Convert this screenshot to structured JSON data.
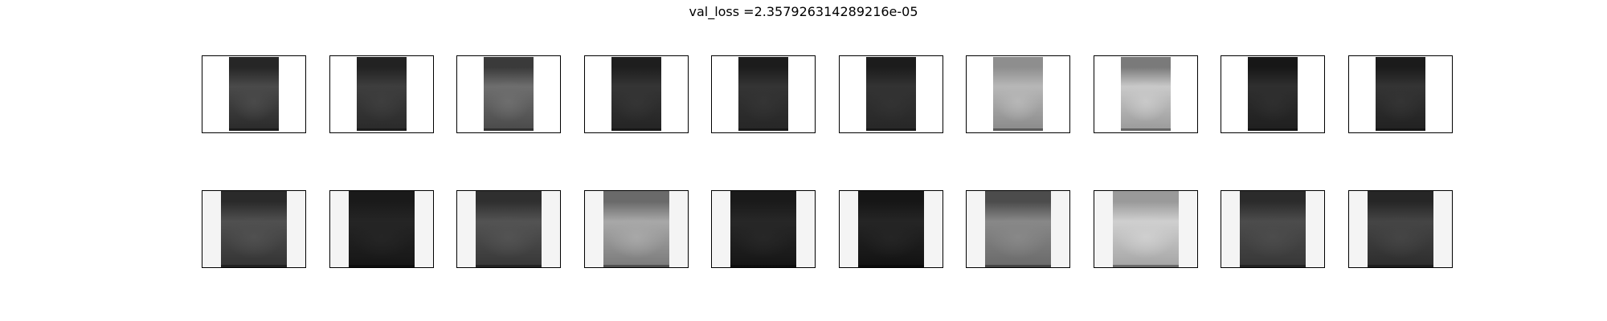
{
  "title": "val_loss =2.357926314289216e-05",
  "rows": [
    {
      "name": "row-1",
      "images": [
        {
          "top": "#262626",
          "mid": "#4a4a4a",
          "bottom": "#2a2a2a"
        },
        {
          "top": "#222222",
          "mid": "#3e3e3e",
          "bottom": "#2a2a2a"
        },
        {
          "top": "#3a3a3a",
          "mid": "#6e6e6e",
          "bottom": "#4a4a4a"
        },
        {
          "top": "#1e1e1e",
          "mid": "#353535",
          "bottom": "#242424"
        },
        {
          "top": "#1c1c1c",
          "mid": "#343434",
          "bottom": "#262626"
        },
        {
          "top": "#1c1c1c",
          "mid": "#333333",
          "bottom": "#272727"
        },
        {
          "top": "#8e8e8e",
          "mid": "#b7b7b7",
          "bottom": "#8a8a8a"
        },
        {
          "top": "#7a7a7a",
          "mid": "#c9c9c9",
          "bottom": "#9a9a9a"
        },
        {
          "top": "#171717",
          "mid": "#2f2f2f",
          "bottom": "#1f1f1f"
        },
        {
          "top": "#1b1b1b",
          "mid": "#343434",
          "bottom": "#212121"
        }
      ]
    },
    {
      "name": "row-2",
      "images": [
        {
          "top": "#2a2a2a",
          "mid": "#505050",
          "bottom": "#333333"
        },
        {
          "top": "#1a1a1a",
          "mid": "#252525",
          "bottom": "#161616"
        },
        {
          "top": "#2f2f2f",
          "mid": "#535353",
          "bottom": "#373737"
        },
        {
          "top": "#6a6a6a",
          "mid": "#a8a8a8",
          "bottom": "#7a7a7a"
        },
        {
          "top": "#1a1a1a",
          "mid": "#272727",
          "bottom": "#151515"
        },
        {
          "top": "#161616",
          "mid": "#252525",
          "bottom": "#121212"
        },
        {
          "top": "#4c4c4c",
          "mid": "#888888",
          "bottom": "#6a6a6a"
        },
        {
          "top": "#9a9a9a",
          "mid": "#cfcfcf",
          "bottom": "#a5a5a5"
        },
        {
          "top": "#2b2b2b",
          "mid": "#4c4c4c",
          "bottom": "#373737"
        },
        {
          "top": "#262626",
          "mid": "#454545",
          "bottom": "#2d2d2d"
        }
      ]
    }
  ]
}
